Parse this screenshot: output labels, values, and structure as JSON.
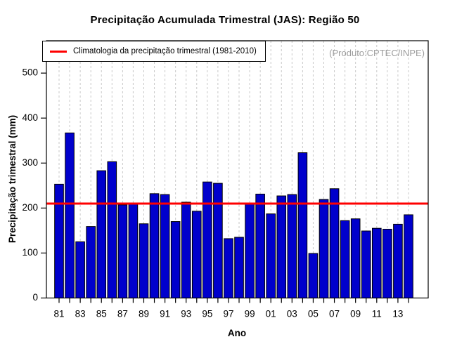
{
  "title": "Precipitação Acumulada Trimestral (JAS): Região 50",
  "producer_note": "(Produto:CPTEC/INPE)",
  "legend": {
    "climatology_label": "Climatologia da precipitação trimestral (1981-2010)",
    "position": "top-left"
  },
  "chart_data": {
    "type": "bar",
    "title": "Precipitação Acumulada Trimestral (JAS): Região 50",
    "xlabel": "Ano",
    "ylabel": "Precipitação trimestral (mm)",
    "years": [
      1981,
      1982,
      1983,
      1984,
      1985,
      1986,
      1987,
      1988,
      1989,
      1990,
      1991,
      1992,
      1993,
      1994,
      1995,
      1996,
      1997,
      1998,
      1999,
      2000,
      2001,
      2002,
      2003,
      2004,
      2005,
      2006,
      2007,
      2008,
      2009,
      2010,
      2011,
      2012,
      2013,
      2014
    ],
    "values": [
      253,
      367,
      125,
      159,
      283,
      303,
      207,
      210,
      165,
      232,
      230,
      170,
      213,
      193,
      258,
      255,
      132,
      135,
      209,
      231,
      187,
      227,
      230,
      323,
      99,
      219,
      243,
      172,
      176,
      149,
      155,
      153,
      164,
      185
    ],
    "climatology_line": 210,
    "ylim": [
      0,
      572
    ],
    "yticks": [
      0,
      100,
      200,
      300,
      400,
      500
    ],
    "xtick_labels": [
      "81",
      "83",
      "85",
      "87",
      "89",
      "91",
      "93",
      "95",
      "97",
      "99",
      "01",
      "03",
      "05",
      "07",
      "09",
      "11",
      "13"
    ],
    "grid": "vertical-dashed",
    "legend_position": "top-left",
    "bar_color": "#0000CC",
    "bar_border_color": "#000000",
    "line_color": "#FF0000",
    "grid_color": "#c9c9c9",
    "producer_color": "#9c9c9c"
  }
}
